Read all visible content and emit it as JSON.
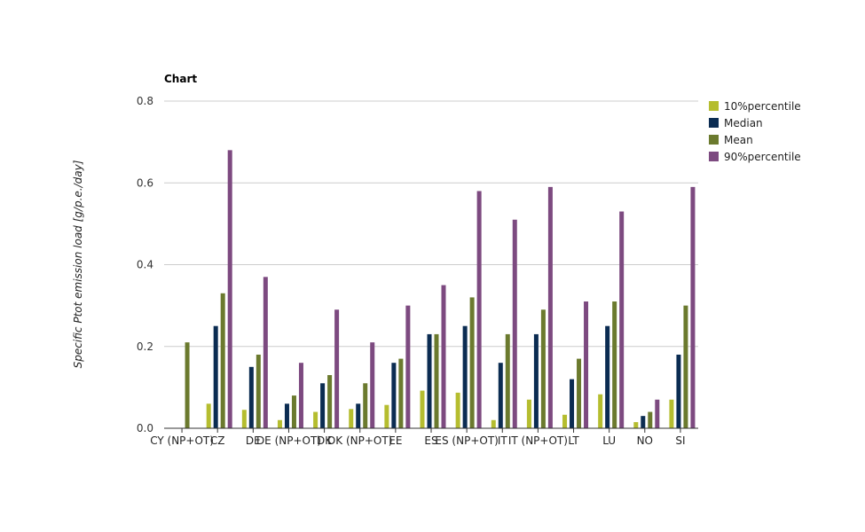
{
  "chart_data": {
    "type": "bar",
    "title": "Chart",
    "xlabel": "",
    "ylabel": "Specific Ptot emission load [g/p.e./day]",
    "ylim": [
      0,
      0.8
    ],
    "yticks": [
      "0.0",
      "0.2",
      "0.4",
      "0.6",
      "0.8"
    ],
    "grid": true,
    "legend_position": "right",
    "categories": [
      "CY (NP+OT)",
      "CZ",
      "DE",
      "DE (NP+OT)",
      "DK",
      "DK (NP+OT)",
      "EE",
      "ES",
      "ES (NP+OT)",
      "IT",
      "IT (NP+OT)",
      "LT",
      "LU",
      "NO",
      "SI"
    ],
    "series": [
      {
        "name": "10%percentile",
        "color": "#b5bd2f",
        "values": [
          null,
          0.06,
          0.045,
          0.02,
          0.04,
          0.047,
          0.057,
          0.092,
          0.087,
          0.02,
          0.07,
          0.033,
          0.083,
          0.015,
          0.07
        ]
      },
      {
        "name": "Median",
        "color": "#0b2c52",
        "values": [
          null,
          0.25,
          0.15,
          0.06,
          0.11,
          0.06,
          0.16,
          0.23,
          0.25,
          0.16,
          0.23,
          0.12,
          0.25,
          0.03,
          0.18
        ]
      },
      {
        "name": "Mean",
        "color": "#6b7a2e",
        "values": [
          0.21,
          0.33,
          0.18,
          0.08,
          0.13,
          0.11,
          0.17,
          0.23,
          0.32,
          0.23,
          0.29,
          0.17,
          0.31,
          0.04,
          0.3
        ]
      },
      {
        "name": "90%percentile",
        "color": "#7d4a80",
        "values": [
          null,
          0.68,
          0.37,
          0.16,
          0.29,
          0.21,
          0.3,
          0.35,
          0.58,
          0.51,
          0.59,
          0.31,
          0.53,
          0.07,
          0.59
        ]
      }
    ]
  }
}
